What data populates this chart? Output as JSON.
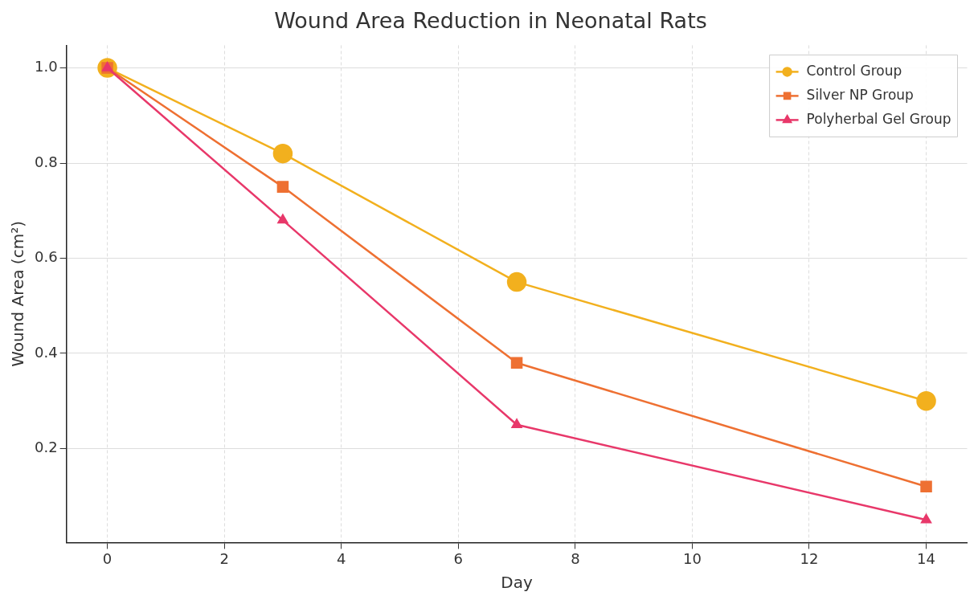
{
  "chart_data": {
    "type": "line",
    "title": "Wound Area Reduction in Neonatal Rats",
    "xlabel": "Day",
    "ylabel": "Wound Area (cm²)",
    "x": [
      0,
      3,
      7,
      14
    ],
    "series": [
      {
        "name": "Control Group",
        "color": "#f2b01e",
        "marker": "circle",
        "values": [
          1.0,
          0.82,
          0.55,
          0.3
        ]
      },
      {
        "name": "Silver NP Group",
        "color": "#ee7032",
        "marker": "square",
        "values": [
          1.0,
          0.75,
          0.38,
          0.12
        ]
      },
      {
        "name": "Polyherbal Gel Group",
        "color": "#e8386a",
        "marker": "triangle",
        "values": [
          1.0,
          0.68,
          0.25,
          0.05
        ]
      }
    ],
    "xlim": [
      -0.7,
      14.7
    ],
    "xticks": [
      0,
      2,
      4,
      6,
      8,
      10,
      12,
      14
    ],
    "ylim": [
      0.0025,
      1.0475
    ],
    "yticks": [
      0.2,
      0.4,
      0.6,
      0.8,
      {
        "value": 1.0,
        "label": "1.0"
      }
    ],
    "grid": true,
    "legend": "top right",
    "line_style": "solid"
  }
}
